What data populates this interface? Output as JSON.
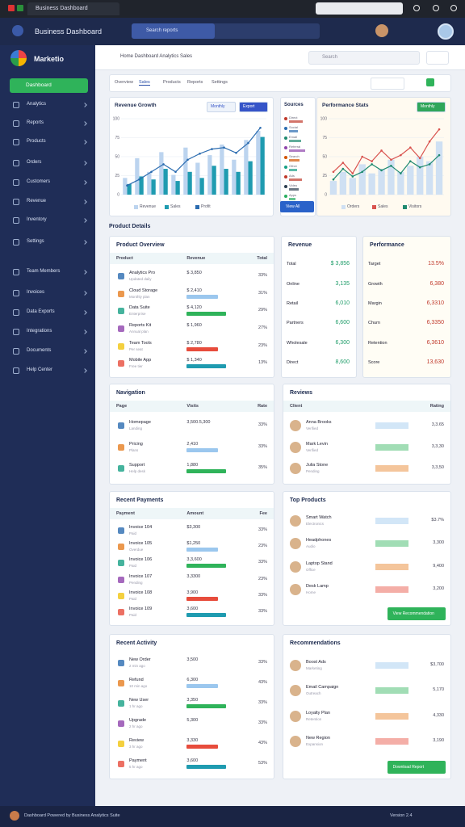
{
  "browser": {
    "tab_title": "Business Dashboard"
  },
  "header": {
    "title": "Business Dashboard",
    "search_placeholder": "Search reports"
  },
  "sidebar": {
    "brand": "Marketio",
    "primary_button": "Dashboard",
    "items": [
      "Analytics",
      "Reports",
      "Products",
      "Orders",
      "Customers",
      "Revenue",
      "Inventory",
      "Settings",
      "Team Members",
      "Invoices",
      "Data Exports",
      "Integrations",
      "Documents",
      "Help Center"
    ]
  },
  "page": {
    "breadcrumb": "Home  Dashboard  Analytics  Sales",
    "search": "Search",
    "tabs": [
      "Overview",
      "Sales",
      "Products",
      "Reports",
      "Settings"
    ],
    "section_title": "Product Details"
  },
  "charts": [
    {
      "title": "Revenue Growth",
      "buttons": [
        "Monthly",
        "Export"
      ],
      "ylim": [
        0,
        100
      ],
      "yticks": [
        0,
        25,
        50,
        75,
        100
      ],
      "series": [
        {
          "name": "Revenue",
          "color": "#bcd4ef",
          "values": [
            22,
            48,
            30,
            56,
            26,
            62,
            42,
            52,
            66,
            46,
            72,
            84
          ]
        },
        {
          "name": "Sales",
          "color": "#1f9bb0",
          "values": [
            14,
            24,
            20,
            34,
            18,
            30,
            22,
            38,
            34,
            30,
            44,
            76
          ]
        }
      ],
      "lines": [
        {
          "name": "Profit",
          "color": "#2b6cb0",
          "values": [
            12,
            20,
            30,
            40,
            30,
            46,
            54,
            60,
            62,
            55,
            68,
            88
          ]
        }
      ]
    },
    {
      "title": "Performance Stats",
      "buttons": [
        "Monthly"
      ],
      "ylim": [
        0,
        100
      ],
      "yticks": [
        0,
        25,
        50,
        75,
        100
      ],
      "series": [
        {
          "name": "Orders",
          "color": "#cfe0f3",
          "values": [
            18,
            30,
            22,
            40,
            28,
            34,
            46,
            30,
            38,
            50,
            44,
            70
          ]
        }
      ],
      "lines": [
        {
          "name": "Sales",
          "color": "#d9534f",
          "values": [
            30,
            42,
            28,
            50,
            44,
            58,
            46,
            52,
            62,
            48,
            70,
            86
          ]
        },
        {
          "name": "Visitors",
          "color": "#1f8a70",
          "values": [
            20,
            34,
            24,
            30,
            40,
            32,
            38,
            28,
            44,
            36,
            40,
            52
          ]
        }
      ]
    }
  ],
  "sources": {
    "title": "Sources",
    "button": "View All",
    "xlim": [
      0,
      100
    ],
    "items": [
      "Direct",
      "Social",
      "Email",
      "Referral",
      "Search",
      "Other",
      "Ads",
      "Video",
      "Apps"
    ],
    "values": [
      62,
      40,
      55,
      70,
      48,
      35,
      58,
      44,
      30
    ]
  },
  "cards": [
    {
      "title": "Product Overview",
      "columns": [
        "Product",
        "Revenue",
        "Total"
      ],
      "value_color": "#445",
      "rows": [
        [
          "Analytics Pro",
          "Updated daily",
          "$ 3,850",
          "33%"
        ],
        [
          "Cloud Storage",
          "Monthly plan",
          "$ 2,410",
          "31%"
        ],
        [
          "Data Suite",
          "Enterprise",
          "$ 4,120",
          "29%"
        ],
        [
          "Reports Kit",
          "Annual plan",
          "$ 1,960",
          "27%"
        ],
        [
          "Team Tools",
          "Per seat",
          "$ 2,780",
          "23%"
        ],
        [
          "Mobile App",
          "Free tier",
          "$ 1,340",
          "13%"
        ]
      ]
    },
    {
      "title": "Revenue",
      "columns": [],
      "value_color": "#1f9d6a",
      "rows": [
        [
          "Total",
          "$ 3,856"
        ],
        [
          "Online",
          "3,135"
        ],
        [
          "Retail",
          "6,010"
        ],
        [
          "Partners",
          "6,600"
        ],
        [
          "Wholesale",
          "6,300"
        ],
        [
          "Direct",
          "8,600"
        ]
      ]
    },
    {
      "title": "Performance",
      "columns": [],
      "value_color": "#c0392b",
      "rows": [
        [
          "Target",
          "13.5%"
        ],
        [
          "Growth",
          "6,380"
        ],
        [
          "Margin",
          "6,3310"
        ],
        [
          "Churn",
          "6,3350"
        ],
        [
          "Retention",
          "6,3610"
        ],
        [
          "Score",
          "13,630"
        ]
      ]
    },
    {
      "title": "Navigation",
      "columns": [
        "Page",
        "Visits",
        "Rate"
      ],
      "value_color": "#445",
      "rows": [
        [
          "Homepage",
          "Landing",
          "3,500.5,300",
          "33%"
        ],
        [
          "Pricing",
          "Plans",
          "2,410",
          "33%"
        ],
        [
          "Support",
          "Help desk",
          "1,880",
          "35%"
        ]
      ]
    },
    {
      "title": "Reviews",
      "columns": [
        "Client",
        "Rating"
      ],
      "value_color": "#445",
      "rows": [
        [
          "Anna Brooks",
          "Verified",
          "3,3.65"
        ],
        [
          "Mark Levin",
          "Verified",
          "3,3,30"
        ],
        [
          "Julia Stone",
          "Pending",
          "3,3,50"
        ]
      ]
    },
    {
      "title": "Recent Payments",
      "columns": [
        "Payment",
        "Amount",
        "Fee"
      ],
      "value_color": "#445",
      "rows": [
        [
          "Invoice 104",
          "Paid",
          "$3,300",
          "33%"
        ],
        [
          "Invoice 105",
          "Overdue",
          "$1,250",
          "23%"
        ],
        [
          "Invoice 106",
          "Paid",
          "3,3,600",
          "33%"
        ],
        [
          "Invoice 107",
          "Pending",
          "3,3300",
          "23%"
        ],
        [
          "Invoice 108",
          "Paid",
          "3,900",
          "33%"
        ],
        [
          "Invoice 109",
          "Paid",
          "3,600",
          "33%"
        ]
      ]
    },
    {
      "title": "Top Products",
      "columns": [],
      "value_color": "#445",
      "button": "View Recommendation",
      "rows": [
        [
          "Smart Watch",
          "Electronics",
          "$3.7%"
        ],
        [
          "Headphones",
          "Audio",
          "3,300"
        ],
        [
          "Laptop Stand",
          "Office",
          "9,400"
        ],
        [
          "Desk Lamp",
          "Home",
          "3,200"
        ]
      ]
    },
    {
      "title": "Recent Activity",
      "columns": [],
      "value_color": "#445",
      "rows": [
        [
          "New Order",
          "2 min ago",
          "3,500",
          "33%"
        ],
        [
          "Refund",
          "10 min ago",
          "6,300",
          "43%"
        ],
        [
          "New User",
          "1 hr ago",
          "3,350",
          "33%"
        ],
        [
          "Upgrade",
          "2 hr ago",
          "5,300",
          "33%"
        ],
        [
          "Review",
          "3 hr ago",
          "3,330",
          "43%"
        ],
        [
          "Payment",
          "5 hr ago",
          "3,600",
          "53%"
        ]
      ]
    },
    {
      "title": "Recommendations",
      "columns": [],
      "value_color": "#445",
      "button": "Download Report",
      "rows": [
        [
          "Boost Ads",
          "Marketing",
          "$3,700"
        ],
        [
          "Email Campaign",
          "Outreach",
          "5,170"
        ],
        [
          "Loyalty Plan",
          "Retention",
          "4,330"
        ],
        [
          "New Region",
          "Expansion",
          "3,190"
        ]
      ]
    }
  ],
  "footer": {
    "left": "Dashboard Powered by Business Analytics Suite",
    "right": "Version 2.4"
  }
}
